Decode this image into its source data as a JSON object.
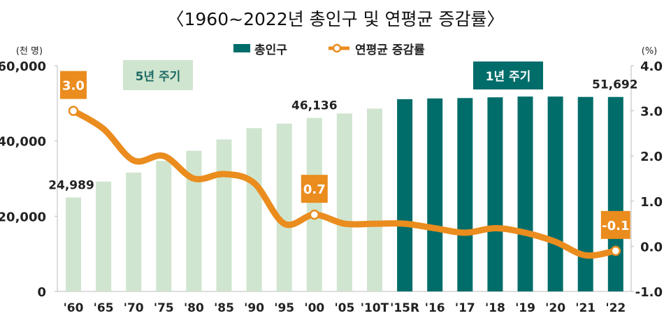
{
  "chart_data": {
    "type": "bar+line",
    "title": "〈1960~2022년 총인구 및 연평균 증감률〉",
    "categories": [
      "'60",
      "'65",
      "'70",
      "'75",
      "'80",
      "'85",
      "'90",
      "'95",
      "'00",
      "'05",
      "'10T",
      "'15R",
      "'16",
      "'17",
      "'18",
      "'19",
      "'20",
      "'21",
      "'22"
    ],
    "left_axis": {
      "unit": "(천 명)",
      "range": [
        0,
        60000
      ],
      "ticks": [
        "0",
        "20,000",
        "40,000",
        "60,000"
      ]
    },
    "right_axis": {
      "unit": "(%)",
      "range": [
        -1.0,
        4.0
      ],
      "ticks": [
        "-1.0",
        "0.0",
        "1.0",
        "2.0",
        "3.0",
        "4.0"
      ]
    },
    "legend": {
      "placement": "top-center"
    },
    "series": [
      {
        "name": "총인구",
        "type": "bar",
        "axis": "left",
        "values": [
          24989,
          29200,
          31600,
          34700,
          37400,
          40400,
          43400,
          44600,
          46136,
          47300,
          48600,
          51100,
          51300,
          51400,
          51600,
          51800,
          51800,
          51700,
          51692
        ]
      },
      {
        "name": "연평균 증감률",
        "type": "line",
        "axis": "right",
        "values": [
          3.0,
          2.6,
          1.9,
          2.0,
          1.5,
          1.6,
          1.4,
          0.5,
          0.7,
          0.5,
          0.5,
          0.5,
          0.4,
          0.3,
          0.4,
          0.3,
          0.1,
          -0.2,
          -0.1
        ]
      }
    ],
    "bar_data_labels": [
      {
        "category": "'60",
        "text": "24,989"
      },
      {
        "category": "'00",
        "text": "46,136"
      },
      {
        "category": "'22",
        "text": "51,692"
      }
    ],
    "line_data_labels": [
      {
        "category": "'60",
        "text": "3.0"
      },
      {
        "category": "'00",
        "text": "0.7"
      },
      {
        "category": "'22",
        "text": "-0.1"
      }
    ],
    "annotations": [
      {
        "text": "5년 주기"
      },
      {
        "text": "1년 주기"
      }
    ],
    "colors": {
      "bar_5yr": "#d0e5cf",
      "bar_1yr": "#006d6a",
      "line": "#ea8c1e",
      "annotation_5yr_bg": "#d0e5cf",
      "annotation_5yr_text": "#1f6b66",
      "annotation_1yr_bg": "#006d6a"
    },
    "grid": false
  }
}
